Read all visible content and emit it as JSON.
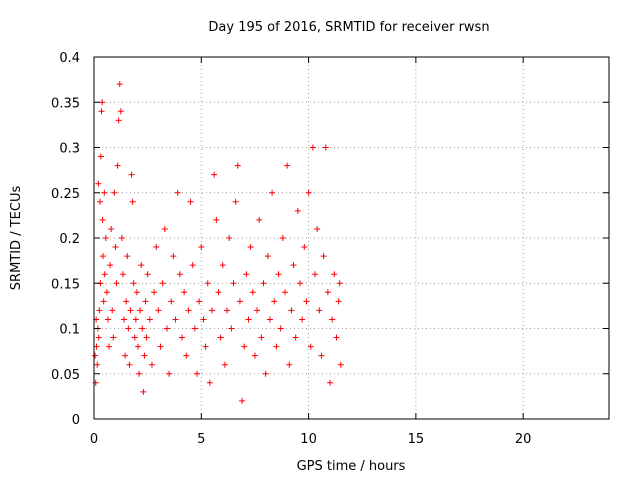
{
  "chart_data": {
    "type": "scatter",
    "title": "Day 195 of 2016, SRMTID for receiver rwsn",
    "xlabel": "GPS time / hours",
    "ylabel": "SRMTID / TECUs",
    "xlim": [
      0,
      24
    ],
    "ylim": [
      0,
      0.4
    ],
    "xticks": [
      0,
      5,
      10,
      15,
      20
    ],
    "yticks": [
      0,
      0.05,
      0.1,
      0.15,
      0.2,
      0.25,
      0.3,
      0.35,
      0.4
    ],
    "xtick_labels": [
      "0",
      "5",
      "10",
      "15",
      "20"
    ],
    "ytick_labels": [
      "0",
      "0.05",
      "0.1",
      "0.15",
      "0.2",
      "0.25",
      "0.3",
      "0.35",
      "0.4"
    ],
    "grid": true,
    "marker": "plus",
    "color": "#ff0000",
    "points": [
      [
        0.05,
        0.07
      ],
      [
        0.08,
        0.04
      ],
      [
        0.1,
        0.11
      ],
      [
        0.12,
        0.08
      ],
      [
        0.15,
        0.06
      ],
      [
        0.18,
        0.1
      ],
      [
        0.2,
        0.26
      ],
      [
        0.22,
        0.09
      ],
      [
        0.25,
        0.12
      ],
      [
        0.28,
        0.24
      ],
      [
        0.3,
        0.15
      ],
      [
        0.32,
        0.29
      ],
      [
        0.35,
        0.34
      ],
      [
        0.38,
        0.35
      ],
      [
        0.4,
        0.22
      ],
      [
        0.42,
        0.18
      ],
      [
        0.45,
        0.13
      ],
      [
        0.48,
        0.25
      ],
      [
        0.5,
        0.16
      ],
      [
        0.55,
        0.2
      ],
      [
        0.6,
        0.14
      ],
      [
        0.65,
        0.11
      ],
      [
        0.7,
        0.08
      ],
      [
        0.75,
        0.17
      ],
      [
        0.8,
        0.21
      ],
      [
        0.85,
        0.12
      ],
      [
        0.9,
        0.09
      ],
      [
        0.95,
        0.25
      ],
      [
        1.0,
        0.19
      ],
      [
        1.05,
        0.15
      ],
      [
        1.1,
        0.28
      ],
      [
        1.15,
        0.33
      ],
      [
        1.2,
        0.37
      ],
      [
        1.25,
        0.34
      ],
      [
        1.3,
        0.2
      ],
      [
        1.35,
        0.16
      ],
      [
        1.4,
        0.11
      ],
      [
        1.45,
        0.07
      ],
      [
        1.5,
        0.13
      ],
      [
        1.55,
        0.18
      ],
      [
        1.6,
        0.1
      ],
      [
        1.65,
        0.06
      ],
      [
        1.7,
        0.12
      ],
      [
        1.75,
        0.27
      ],
      [
        1.8,
        0.24
      ],
      [
        1.85,
        0.15
      ],
      [
        1.9,
        0.09
      ],
      [
        1.95,
        0.11
      ],
      [
        2.0,
        0.14
      ],
      [
        2.05,
        0.08
      ],
      [
        2.1,
        0.05
      ],
      [
        2.15,
        0.12
      ],
      [
        2.2,
        0.17
      ],
      [
        2.25,
        0.1
      ],
      [
        2.3,
        0.03
      ],
      [
        2.35,
        0.07
      ],
      [
        2.4,
        0.13
      ],
      [
        2.45,
        0.09
      ],
      [
        2.5,
        0.16
      ],
      [
        2.6,
        0.11
      ],
      [
        2.7,
        0.06
      ],
      [
        2.8,
        0.14
      ],
      [
        2.9,
        0.19
      ],
      [
        3.0,
        0.12
      ],
      [
        3.1,
        0.08
      ],
      [
        3.2,
        0.15
      ],
      [
        3.3,
        0.21
      ],
      [
        3.4,
        0.1
      ],
      [
        3.5,
        0.05
      ],
      [
        3.6,
        0.13
      ],
      [
        3.7,
        0.18
      ],
      [
        3.8,
        0.11
      ],
      [
        3.9,
        0.25
      ],
      [
        4.0,
        0.16
      ],
      [
        4.1,
        0.09
      ],
      [
        4.2,
        0.14
      ],
      [
        4.3,
        0.07
      ],
      [
        4.4,
        0.12
      ],
      [
        4.5,
        0.24
      ],
      [
        4.6,
        0.17
      ],
      [
        4.7,
        0.1
      ],
      [
        4.8,
        0.05
      ],
      [
        4.9,
        0.13
      ],
      [
        5.0,
        0.19
      ],
      [
        5.1,
        0.11
      ],
      [
        5.2,
        0.08
      ],
      [
        5.3,
        0.15
      ],
      [
        5.4,
        0.04
      ],
      [
        5.5,
        0.12
      ],
      [
        5.6,
        0.27
      ],
      [
        5.7,
        0.22
      ],
      [
        5.8,
        0.14
      ],
      [
        5.9,
        0.09
      ],
      [
        6.0,
        0.17
      ],
      [
        6.1,
        0.06
      ],
      [
        6.2,
        0.12
      ],
      [
        6.3,
        0.2
      ],
      [
        6.4,
        0.1
      ],
      [
        6.5,
        0.15
      ],
      [
        6.6,
        0.24
      ],
      [
        6.7,
        0.28
      ],
      [
        6.8,
        0.13
      ],
      [
        6.9,
        0.02
      ],
      [
        7.0,
        0.08
      ],
      [
        7.1,
        0.16
      ],
      [
        7.2,
        0.11
      ],
      [
        7.3,
        0.19
      ],
      [
        7.4,
        0.14
      ],
      [
        7.5,
        0.07
      ],
      [
        7.6,
        0.12
      ],
      [
        7.7,
        0.22
      ],
      [
        7.8,
        0.09
      ],
      [
        7.9,
        0.15
      ],
      [
        8.0,
        0.05
      ],
      [
        8.1,
        0.18
      ],
      [
        8.2,
        0.11
      ],
      [
        8.3,
        0.25
      ],
      [
        8.4,
        0.13
      ],
      [
        8.5,
        0.08
      ],
      [
        8.6,
        0.16
      ],
      [
        8.7,
        0.1
      ],
      [
        8.8,
        0.2
      ],
      [
        8.9,
        0.14
      ],
      [
        9.0,
        0.28
      ],
      [
        9.1,
        0.06
      ],
      [
        9.2,
        0.12
      ],
      [
        9.3,
        0.17
      ],
      [
        9.4,
        0.09
      ],
      [
        9.5,
        0.23
      ],
      [
        9.6,
        0.15
      ],
      [
        9.7,
        0.11
      ],
      [
        9.8,
        0.19
      ],
      [
        9.9,
        0.13
      ],
      [
        10.0,
        0.25
      ],
      [
        10.1,
        0.08
      ],
      [
        10.2,
        0.3
      ],
      [
        10.3,
        0.16
      ],
      [
        10.4,
        0.21
      ],
      [
        10.5,
        0.12
      ],
      [
        10.6,
        0.07
      ],
      [
        10.7,
        0.18
      ],
      [
        10.8,
        0.3
      ],
      [
        10.9,
        0.14
      ],
      [
        11.0,
        0.04
      ],
      [
        11.1,
        0.11
      ],
      [
        11.2,
        0.16
      ],
      [
        11.3,
        0.09
      ],
      [
        11.4,
        0.13
      ],
      [
        11.45,
        0.15
      ],
      [
        11.5,
        0.06
      ]
    ]
  }
}
